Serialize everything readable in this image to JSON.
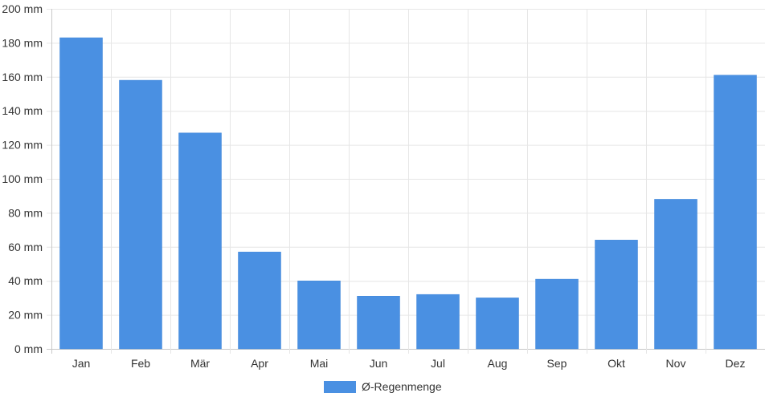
{
  "chart_data": {
    "type": "bar",
    "categories": [
      "Jan",
      "Feb",
      "Mär",
      "Apr",
      "Mai",
      "Jun",
      "Jul",
      "Aug",
      "Sep",
      "Okt",
      "Nov",
      "Dez"
    ],
    "series": [
      {
        "name": "Ø-Regenmenge",
        "values": [
          183,
          158,
          127,
          57,
          40,
          31,
          32,
          30,
          41,
          64,
          88,
          161
        ],
        "color": "#4a90e2"
      }
    ],
    "y_unit": "mm",
    "ylim": [
      0,
      200
    ],
    "y_ticks": [
      0,
      20,
      40,
      60,
      80,
      100,
      120,
      140,
      160,
      180,
      200
    ],
    "y_tick_labels": [
      "0 mm",
      "20 mm",
      "40 mm",
      "60 mm",
      "80 mm",
      "100 mm",
      "120 mm",
      "140 mm",
      "160 mm",
      "180 mm",
      "200 mm"
    ],
    "grid": true,
    "legend_position": "bottom-center",
    "title": "",
    "xlabel": "",
    "ylabel": ""
  }
}
